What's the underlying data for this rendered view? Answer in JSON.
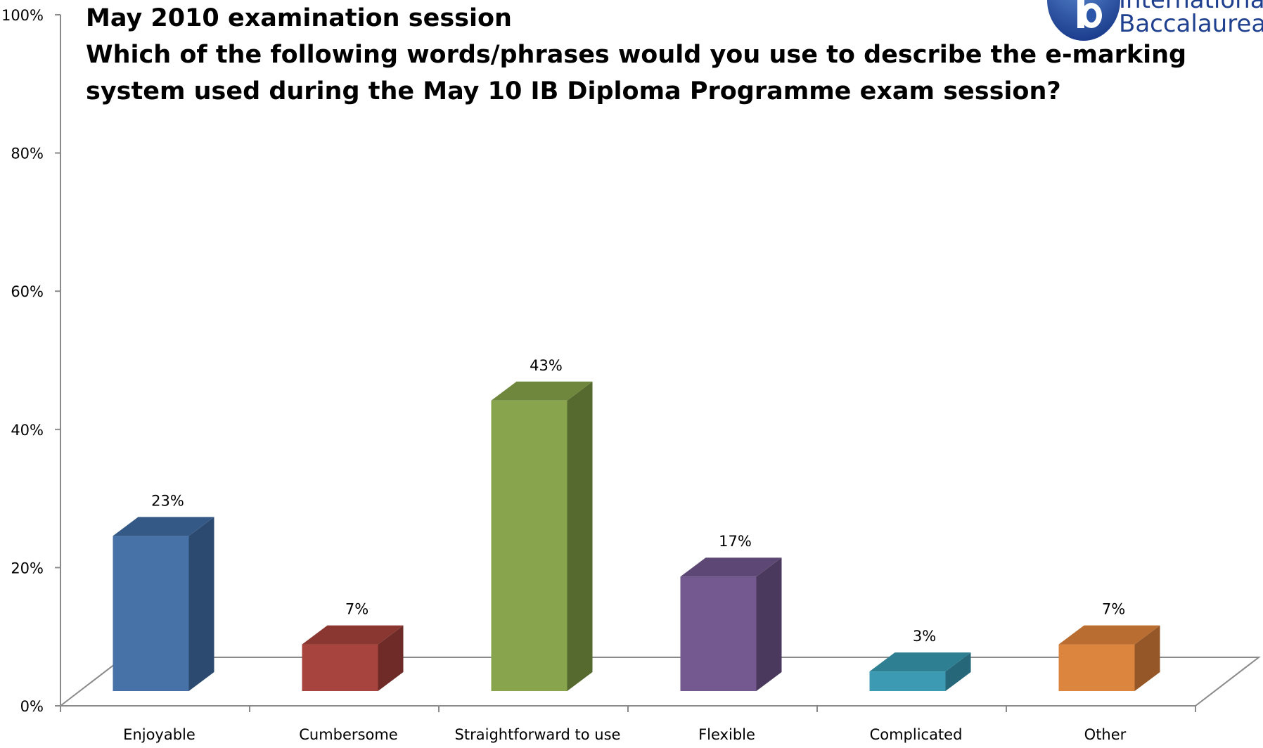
{
  "colors": {
    "axis": "#8a8a8a",
    "text": "#000000",
    "logo": "#1f3f8f"
  },
  "logo": {
    "line1": "International",
    "line2": "Baccalaureate",
    "icon": "ib-logo-icon"
  },
  "chart_data": {
    "type": "bar",
    "title": "May 2010 examination session",
    "subtitle": "Which of the following words/phrases would you use to describe the e-marking system used during the May 10 IB Diploma Programme exam session?",
    "title_lines": [
      "May 2010 examination session",
      "Which of the following words/phrases would you use to describe the e-marking",
      "system used during the May 10 IB Diploma Programme exam session?"
    ],
    "categories": [
      "Enjoyable",
      "Cumbersome",
      "Straightforward to use",
      "Flexible",
      "Complicated",
      "Other"
    ],
    "values": [
      23,
      7,
      43,
      17,
      3,
      7
    ],
    "value_labels": [
      "23%",
      "7%",
      "43%",
      "17%",
      "3%",
      "7%"
    ],
    "bar_colors": [
      {
        "front": "#4672a8",
        "side": "#2c4a6f",
        "top": "#355987"
      },
      {
        "front": "#a8443e",
        "side": "#6e2b27",
        "top": "#8a3631"
      },
      {
        "front": "#88a54e",
        "side": "#566a30",
        "top": "#6e873c"
      },
      {
        "front": "#735990",
        "side": "#4a395d",
        "top": "#5d4875"
      },
      {
        "front": "#3c9bb3",
        "side": "#27677a",
        "top": "#2f7f93"
      },
      {
        "front": "#db853f",
        "side": "#965728",
        "top": "#b96d31"
      }
    ],
    "y_ticks": [
      "0%",
      "20%",
      "40%",
      "60%",
      "80%",
      "100%"
    ],
    "y_tick_values": [
      0,
      20,
      40,
      60,
      80,
      100
    ],
    "ylim": [
      0,
      100
    ],
    "xlabel": "",
    "ylabel": "",
    "grid": false,
    "legend": "none",
    "three_d": true
  }
}
